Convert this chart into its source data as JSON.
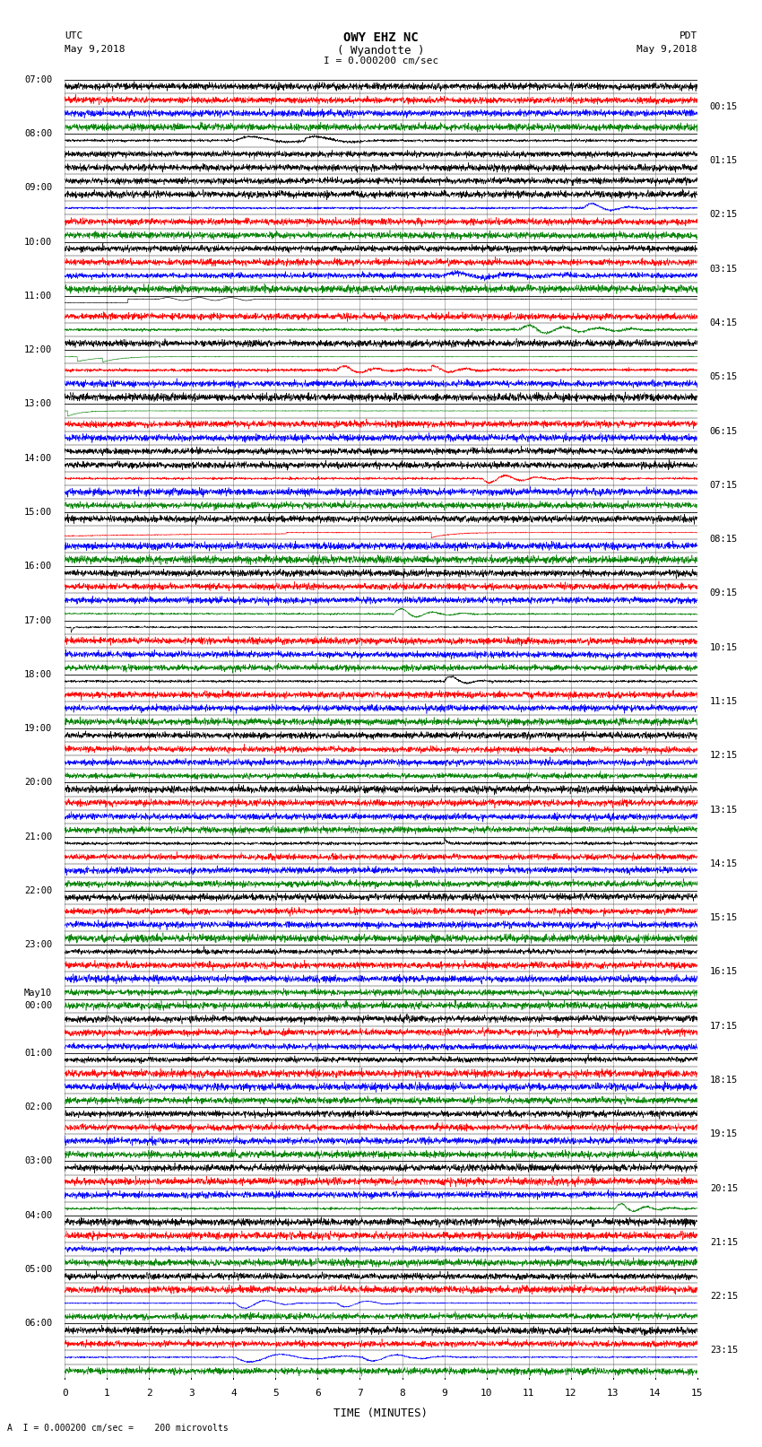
{
  "title_line1": "OWY EHZ NC",
  "title_line2": "( Wyandotte )",
  "scale_label": "I = 0.000200 cm/sec",
  "left_label_top": "UTC",
  "left_label_date": "May 9,2018",
  "right_label_top": "PDT",
  "right_label_date": "May 9,2018",
  "bottom_label": "TIME (MINUTES)",
  "bottom_note": "A  I = 0.000200 cm/sec =    200 microvolts",
  "bg_color": "#ffffff",
  "grid_color_major": "#999999",
  "grid_color_minor": "#cccccc",
  "line_color_major": "#000000",
  "figsize": [
    8.5,
    16.13
  ],
  "dpi": 100,
  "minutes": 15,
  "num_groups": 24,
  "traces_per_group": 4,
  "utc_labels": [
    "07:00",
    "08:00",
    "09:00",
    "10:00",
    "11:00",
    "12:00",
    "13:00",
    "14:00",
    "15:00",
    "16:00",
    "17:00",
    "18:00",
    "19:00",
    "20:00",
    "21:00",
    "22:00",
    "23:00",
    "May10\n00:00",
    "01:00",
    "02:00",
    "03:00",
    "04:00",
    "05:00",
    "06:00"
  ],
  "pdt_labels": [
    "00:15",
    "01:15",
    "02:15",
    "03:15",
    "04:15",
    "05:15",
    "06:15",
    "07:15",
    "08:15",
    "09:15",
    "10:15",
    "11:15",
    "12:15",
    "13:15",
    "14:15",
    "15:15",
    "16:15",
    "17:15",
    "18:15",
    "19:15",
    "20:15",
    "21:15",
    "22:15",
    "23:15"
  ],
  "trace_colors": [
    [
      "black",
      "red",
      "blue",
      "green"
    ],
    [
      "black",
      "black",
      "black",
      "black"
    ],
    [
      "black",
      "blue",
      "red",
      "green"
    ],
    [
      "black",
      "red",
      "blue",
      "green"
    ],
    [
      "black",
      "black",
      "green",
      "black"
    ],
    [
      "red",
      "blue",
      "green",
      "black"
    ],
    [
      "green",
      "red",
      "blue",
      "black"
    ],
    [
      "black",
      "red",
      "blue",
      "green"
    ],
    [
      "black",
      "red",
      "blue",
      "green"
    ],
    [
      "black",
      "red",
      "blue",
      "green"
    ],
    [
      "black",
      "red",
      "blue",
      "green"
    ],
    [
      "black",
      "red",
      "blue",
      "green"
    ],
    [
      "black",
      "red",
      "blue",
      "green"
    ],
    [
      "black",
      "red",
      "blue",
      "green"
    ],
    [
      "black",
      "red",
      "blue",
      "green"
    ],
    [
      "black",
      "red",
      "blue",
      "green"
    ],
    [
      "black",
      "red",
      "blue",
      "green"
    ],
    [
      "green",
      "black",
      "red",
      "blue"
    ],
    [
      "black",
      "red",
      "blue",
      "green"
    ],
    [
      "black",
      "red",
      "blue",
      "green"
    ],
    [
      "black",
      "red",
      "blue",
      "green"
    ],
    [
      "black",
      "red",
      "blue",
      "green"
    ],
    [
      "black",
      "red",
      "blue",
      "green"
    ],
    [
      "black",
      "red",
      "blue",
      "green"
    ]
  ]
}
